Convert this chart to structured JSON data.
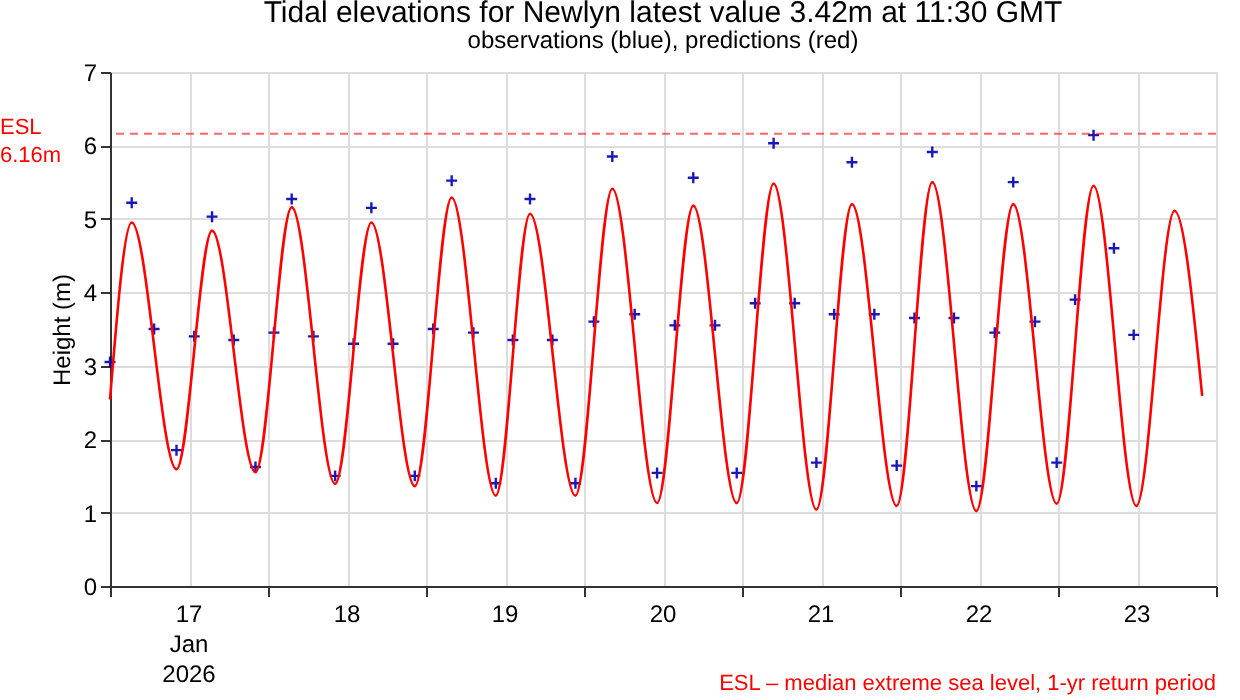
{
  "chart_data": {
    "type": "line",
    "title": "Tidal elevations for Newlyn     latest value 3.42m at 11:30 GMT",
    "subtitle": "observations (blue), predictions (red)",
    "ylabel": "Height (m)",
    "xlim": [
      "2026-01-17T00:00",
      "2026-01-24T00:00"
    ],
    "xticks": [
      {
        "value": "2026-01-17T00:00",
        "label": null
      },
      {
        "value": "2026-01-17T12:00",
        "label": "17 Jan 2026"
      },
      {
        "value": "2026-01-18T00:00",
        "label": null
      },
      {
        "value": "2026-01-18T12:00",
        "label": "18"
      },
      {
        "value": "2026-01-19T00:00",
        "label": null
      },
      {
        "value": "2026-01-19T12:00",
        "label": "19"
      },
      {
        "value": "2026-01-20T00:00",
        "label": null
      },
      {
        "value": "2026-01-20T12:00",
        "label": "20"
      },
      {
        "value": "2026-01-21T00:00",
        "label": null
      },
      {
        "value": "2026-01-21T12:00",
        "label": "21"
      },
      {
        "value": "2026-01-22T00:00",
        "label": null
      },
      {
        "value": "2026-01-22T12:00",
        "label": "22"
      },
      {
        "value": "2026-01-23T00:00",
        "label": null
      },
      {
        "value": "2026-01-23T12:00",
        "label": "23"
      },
      {
        "value": "2026-01-24T00:00",
        "label": null
      }
    ],
    "ylim": [
      0,
      7
    ],
    "yticks": [
      0,
      1,
      2,
      3,
      4,
      5,
      6,
      7
    ],
    "grid": true,
    "ref_lines": [
      {
        "axis": "y",
        "value": 6.16,
        "label": "ESL 6.16m",
        "color": "#ff0000",
        "line_style": "dashed"
      }
    ],
    "annotations": [
      "ESL – median extreme sea level, 1-yr return period"
    ],
    "series": [
      {
        "type": "scatter",
        "marker": "cross",
        "color": "#0000b0",
        "x": [
          "2026-01-17T00:00",
          "2026-01-17T03:18",
          "2026-01-17T06:42",
          "2026-01-17T10:06",
          "2026-01-17T12:48",
          "2026-01-17T15:30",
          "2026-01-17T18:48",
          "2026-01-17T22:06",
          "2026-01-18T00:54",
          "2026-01-18T03:36",
          "2026-01-18T06:54",
          "2026-01-18T10:12",
          "2026-01-18T13:00",
          "2026-01-18T15:42",
          "2026-01-18T19:00",
          "2026-01-18T22:18",
          "2026-01-19T01:06",
          "2026-01-19T03:54",
          "2026-01-19T07:12",
          "2026-01-19T10:36",
          "2026-01-19T13:12",
          "2026-01-19T15:48",
          "2026-01-19T19:12",
          "2026-01-19T22:42",
          "2026-01-20T01:30",
          "2026-01-20T04:18",
          "2026-01-20T07:42",
          "2026-01-20T11:06",
          "2026-01-20T13:48",
          "2026-01-20T16:36",
          "2026-01-20T19:54",
          "2026-01-20T23:12",
          "2026-01-21T02:00",
          "2026-01-21T04:48",
          "2026-01-21T08:00",
          "2026-01-21T11:18",
          "2026-01-21T14:00",
          "2026-01-21T16:42",
          "2026-01-21T20:06",
          "2026-01-21T23:30",
          "2026-01-22T02:12",
          "2026-01-22T04:54",
          "2026-01-22T08:12",
          "2026-01-22T11:36",
          "2026-01-22T14:24",
          "2026-01-22T17:12",
          "2026-01-22T20:30",
          "2026-01-22T23:48",
          "2026-01-23T02:36",
          "2026-01-23T05:24",
          "2026-01-23T08:30",
          "2026-01-23T11:30"
        ],
        "values": [
          3.05,
          5.22,
          3.5,
          1.85,
          3.4,
          5.03,
          3.35,
          1.62,
          3.45,
          5.27,
          3.4,
          1.5,
          3.3,
          5.15,
          3.3,
          1.5,
          3.5,
          5.52,
          3.45,
          1.4,
          3.35,
          5.27,
          3.35,
          1.4,
          3.6,
          5.85,
          3.7,
          1.54,
          3.55,
          5.56,
          3.55,
          1.54,
          3.85,
          6.03,
          3.85,
          1.68,
          3.7,
          5.77,
          3.7,
          1.64,
          3.65,
          5.91,
          3.65,
          1.36,
          3.45,
          5.5,
          3.6,
          1.68,
          3.9,
          6.14,
          4.6,
          3.42
        ]
      },
      {
        "line_style": "solid",
        "color": "#ff0000",
        "x": [
          "2026-01-17T00:00",
          "2026-01-17T03:18",
          "2026-01-17T10:06",
          "2026-01-17T15:30",
          "2026-01-17T22:06",
          "2026-01-18T03:36",
          "2026-01-18T10:12",
          "2026-01-18T15:42",
          "2026-01-18T22:18",
          "2026-01-19T03:54",
          "2026-01-19T10:36",
          "2026-01-19T15:48",
          "2026-01-19T22:42",
          "2026-01-20T04:18",
          "2026-01-20T11:06",
          "2026-01-20T16:36",
          "2026-01-20T23:12",
          "2026-01-21T04:48",
          "2026-01-21T11:18",
          "2026-01-21T16:42",
          "2026-01-21T23:30",
          "2026-01-22T04:54",
          "2026-01-22T11:36",
          "2026-01-22T17:12",
          "2026-01-22T23:48",
          "2026-01-23T05:24",
          "2026-01-23T11:54",
          "2026-01-23T17:42",
          "2026-01-23T21:54"
        ],
        "values": [
          2.54,
          4.95,
          1.59,
          4.84,
          1.55,
          5.16,
          1.39,
          4.95,
          1.36,
          5.29,
          1.23,
          5.07,
          1.23,
          5.41,
          1.13,
          5.18,
          1.13,
          5.48,
          1.04,
          5.2,
          1.09,
          5.5,
          1.02,
          5.2,
          1.12,
          5.45,
          1.09,
          5.11,
          2.59
        ]
      }
    ]
  }
}
